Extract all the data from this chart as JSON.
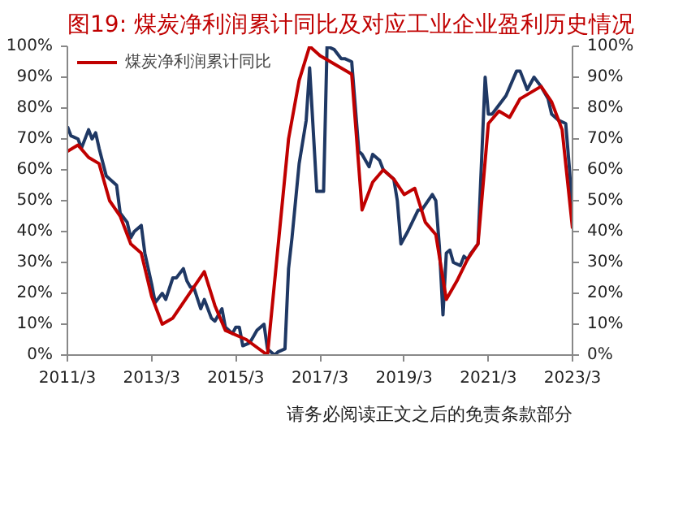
{
  "chart_data": {
    "type": "line",
    "title": "图19:  煤炭净利润累计同比及对应工业企业盈利历史情况",
    "annotations": [
      "请务必阅读正文之后的免责条款部分"
    ],
    "legend": "top",
    "grid": false,
    "marker": "none",
    "line_style": "solid",
    "xlim": [
      "2011-03",
      "2023-03"
    ],
    "xticks": [
      {
        "value": "2011-03",
        "label": "2011/3"
      },
      {
        "value": "2013-03",
        "label": "2013/3"
      },
      {
        "value": "2015-03",
        "label": "2015/3"
      },
      {
        "value": "2017-03",
        "label": "2017/3"
      },
      {
        "value": "2019-03",
        "label": "2019/3"
      },
      {
        "value": "2021-03",
        "label": "2021/3"
      },
      {
        "value": "2023-03",
        "label": "2023/3"
      }
    ],
    "ylim": [
      0,
      100
    ],
    "yticks": [
      {
        "value": 0,
        "label": "0%"
      },
      {
        "value": 10,
        "label": "10%"
      },
      {
        "value": 20,
        "label": "20%"
      },
      {
        "value": 30,
        "label": "30%"
      },
      {
        "value": 40,
        "label": "40%"
      },
      {
        "value": 50,
        "label": "50%"
      },
      {
        "value": 60,
        "label": "60%"
      },
      {
        "value": 70,
        "label": "70%"
      },
      {
        "value": 80,
        "label": "80%"
      },
      {
        "value": 90,
        "label": "90%"
      },
      {
        "value": 100,
        "label": "100%"
      }
    ],
    "y2lim": [
      0,
      100
    ],
    "y2ticks": [
      {
        "value": 0,
        "label": "0%"
      },
      {
        "value": 10,
        "label": "10%"
      },
      {
        "value": 20,
        "label": "20%"
      },
      {
        "value": 30,
        "label": "30%"
      },
      {
        "value": 40,
        "label": "40%"
      },
      {
        "value": 50,
        "label": "50%"
      },
      {
        "value": 60,
        "label": "60%"
      },
      {
        "value": 70,
        "label": "70%"
      },
      {
        "value": 80,
        "label": "80%"
      },
      {
        "value": 90,
        "label": "90%"
      },
      {
        "value": 100,
        "label": "100%"
      }
    ],
    "series": [
      {
        "color": "#1f3864",
        "x": [
          "2011-03",
          "2011-04",
          "2011-06",
          "2011-07",
          "2011-09",
          "2011-10",
          "2011-11",
          "2011-12",
          "2012-02",
          "2012-05",
          "2012-06",
          "2012-08",
          "2012-09",
          "2012-10",
          "2012-12",
          "2013-01",
          "2013-03",
          "2013-04",
          "2013-06",
          "2013-07",
          "2013-09",
          "2013-10",
          "2013-12",
          "2014-01",
          "2014-02",
          "2014-03",
          "2014-05",
          "2014-06",
          "2014-08",
          "2014-09",
          "2014-11",
          "2014-12",
          "2015-02",
          "2015-03",
          "2015-04",
          "2015-05",
          "2015-07",
          "2015-08",
          "2015-09",
          "2015-11",
          "2015-12",
          "2016-02",
          "2016-03",
          "2016-05",
          "2016-06",
          "2016-07",
          "2016-09",
          "2016-11",
          "2016-12",
          "2017-02",
          "2017-04",
          "2017-05",
          "2017-07",
          "2017-09",
          "2017-10",
          "2017-12",
          "2018-02",
          "2018-03",
          "2018-05",
          "2018-06",
          "2018-08",
          "2018-09",
          "2018-12",
          "2019-01",
          "2019-02",
          "2019-04",
          "2019-07",
          "2019-08",
          "2019-11",
          "2019-12",
          "2020-01",
          "2020-02",
          "2020-03",
          "2020-04",
          "2020-05",
          "2020-07",
          "2020-08",
          "2020-09",
          "2020-10",
          "2020-12",
          "2021-02",
          "2021-03",
          "2021-04",
          "2021-06",
          "2021-08",
          "2021-11",
          "2021-12",
          "2022-02",
          "2022-04",
          "2022-06",
          "2022-08",
          "2022-09",
          "2022-11",
          "2023-01",
          "2023-02",
          "2023-03"
        ],
        "values": [
          74,
          71,
          70,
          67,
          73,
          70,
          72,
          67,
          58,
          55,
          46,
          43,
          38,
          40,
          42,
          33,
          23,
          17,
          20,
          18,
          25,
          25,
          28,
          24,
          22,
          22,
          15,
          18,
          12,
          11,
          15,
          9,
          7,
          9,
          9,
          3,
          4,
          6,
          8,
          10,
          2,
          0,
          1,
          2,
          28,
          38,
          62,
          76,
          93,
          53,
          53,
          100,
          99,
          96,
          96,
          95,
          66,
          65,
          61,
          65,
          63,
          60,
          57,
          50,
          36,
          40,
          47,
          47,
          52,
          50,
          35,
          13,
          33,
          34,
          30,
          29,
          32,
          31,
          33,
          36,
          90,
          78,
          78,
          81,
          84,
          92,
          92,
          86,
          90,
          87,
          83,
          78,
          76,
          75,
          61,
          46
        ]
      },
      {
        "name": "煤炭净利润累计同比",
        "color": "#c00000",
        "x": [
          "2011-03",
          "2011-06",
          "2011-09",
          "2011-12",
          "2012-03",
          "2012-06",
          "2012-09",
          "2012-12",
          "2013-03",
          "2013-06",
          "2013-09",
          "2013-12",
          "2014-06",
          "2014-09",
          "2014-12",
          "2015-06",
          "2015-12",
          "2016-06",
          "2016-09",
          "2016-12",
          "2017-03",
          "2017-12",
          "2018-03",
          "2018-06",
          "2018-09",
          "2018-12",
          "2019-03",
          "2019-06",
          "2019-09",
          "2019-12",
          "2020-03",
          "2020-06",
          "2020-09",
          "2020-12",
          "2021-03",
          "2021-06",
          "2021-09",
          "2021-12",
          "2022-06",
          "2022-09",
          "2022-12",
          "2023-03"
        ],
        "values": [
          66,
          68,
          64,
          62,
          50,
          45,
          36,
          33,
          19,
          10,
          12,
          17,
          27,
          16,
          8,
          5,
          0,
          70,
          89,
          100,
          97,
          91,
          47,
          56,
          60,
          57,
          52,
          54,
          43,
          39,
          18,
          24,
          31,
          36,
          75,
          79,
          77,
          83,
          87,
          82,
          73,
          41
        ]
      }
    ]
  }
}
